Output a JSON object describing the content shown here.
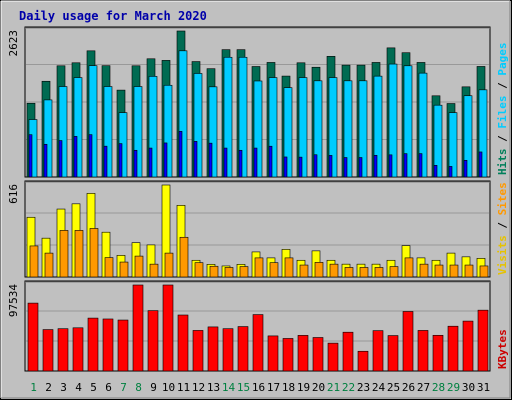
{
  "chart_data": [
    {
      "type": "bar",
      "title": "Daily usage for March 2020",
      "ylabel": "2623",
      "legend": [
        "Pages",
        "Files",
        "Hits"
      ],
      "legend_colors": [
        "#00ccff",
        "#00ccff",
        "#007f5a"
      ],
      "ylim": [
        0,
        2623
      ],
      "categories": [
        "1",
        "2",
        "3",
        "4",
        "5",
        "6",
        "7",
        "8",
        "9",
        "10",
        "11",
        "12",
        "13",
        "14",
        "15",
        "16",
        "17",
        "18",
        "19",
        "20",
        "21",
        "22",
        "23",
        "24",
        "25",
        "26",
        "27",
        "28",
        "29",
        "30",
        "31"
      ],
      "weekend_days": [
        "1",
        "7",
        "8",
        "14",
        "15",
        "21",
        "22",
        "28",
        "29"
      ],
      "series": [
        {
          "name": "Hits",
          "color": "#006b52",
          "values": [
            1325,
            1720,
            1998,
            2052,
            2267,
            2000,
            1561,
            1998,
            2124,
            2095,
            2623,
            2074,
            1946,
            2288,
            2288,
            1985,
            2058,
            1813,
            2052,
            1972,
            2168,
            2010,
            2010,
            2058,
            2320,
            2233,
            2058,
            1459,
            1320,
            1620,
            1986
          ]
        },
        {
          "name": "Files",
          "color": "#00ccff",
          "values": [
            1032,
            1385,
            1625,
            1786,
            2000,
            1625,
            1156,
            1625,
            1808,
            1648,
            2267,
            1860,
            1620,
            2151,
            2151,
            1725,
            1786,
            1605,
            1786,
            1728,
            1786,
            1728,
            1728,
            1812,
            2029,
            1998,
            1866,
            1290,
            1156,
            1460,
            1566
          ]
        },
        {
          "name": "Pages",
          "color": "#0000ff",
          "values": [
            760,
            588,
            655,
            730,
            761,
            554,
            600,
            480,
            520,
            612,
            820,
            640,
            608,
            520,
            480,
            520,
            553,
            360,
            357,
            400,
            388,
            350,
            350,
            390,
            398,
            420,
            420,
            210,
            190,
            300,
            450
          ]
        }
      ]
    },
    {
      "type": "bar",
      "ylabel": "616",
      "legend": [
        "Sites",
        "Visits"
      ],
      "legend_colors": [
        "#ff9900",
        "#e6c200"
      ],
      "ylim": [
        0,
        616
      ],
      "categories": [
        "1",
        "2",
        "3",
        "4",
        "5",
        "6",
        "7",
        "8",
        "9",
        "10",
        "11",
        "12",
        "13",
        "14",
        "15",
        "16",
        "17",
        "18",
        "19",
        "20",
        "21",
        "22",
        "23",
        "24",
        "25",
        "26",
        "27",
        "28",
        "29",
        "30",
        "31"
      ],
      "series": [
        {
          "name": "Visits",
          "color": "#ffff00",
          "values": [
            400,
            260,
            455,
            490,
            560,
            300,
            145,
            230,
            215,
            616,
            480,
            112,
            85,
            74,
            85,
            168,
            128,
            185,
            112,
            175,
            112,
            86,
            86,
            86,
            112,
            210,
            128,
            112,
            160,
            135,
            125
          ]
        },
        {
          "name": "Sites",
          "color": "#ff9900",
          "values": [
            208,
            160,
            312,
            312,
            325,
            130,
            100,
            140,
            86,
            160,
            266,
            96,
            72,
            64,
            70,
            128,
            96,
            128,
            80,
            98,
            86,
            64,
            64,
            64,
            70,
            128,
            86,
            80,
            80,
            80,
            74
          ]
        }
      ]
    },
    {
      "type": "bar",
      "ylabel": "97534",
      "legend": [
        "KBytes"
      ],
      "legend_colors": [
        "#cc0000"
      ],
      "ylim": [
        0,
        97534
      ],
      "categories": [
        "1",
        "2",
        "3",
        "4",
        "5",
        "6",
        "7",
        "8",
        "9",
        "10",
        "11",
        "12",
        "13",
        "14",
        "15",
        "16",
        "17",
        "18",
        "19",
        "20",
        "21",
        "22",
        "23",
        "24",
        "25",
        "26",
        "27",
        "28",
        "29",
        "30",
        "31"
      ],
      "series": [
        {
          "name": "KBytes",
          "color": "#ff0000",
          "values": [
            77000,
            47000,
            48000,
            49000,
            60000,
            59000,
            57800,
            97534,
            68500,
            97534,
            63500,
            46000,
            50000,
            48000,
            50400,
            64000,
            39800,
            36900,
            40400,
            38000,
            31600,
            44000,
            22400,
            45800,
            40200,
            67500,
            46000,
            40500,
            50800,
            56600,
            69000
          ]
        }
      ]
    }
  ]
}
